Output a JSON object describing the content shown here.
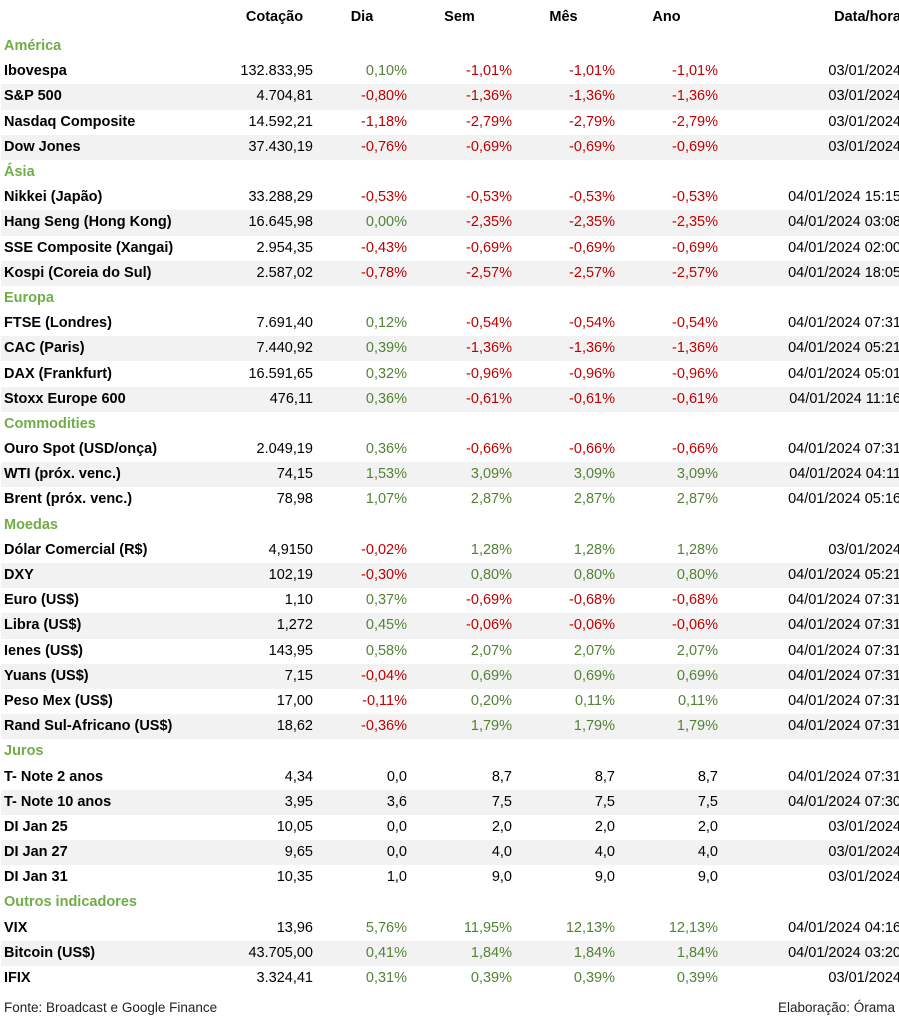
{
  "headers": {
    "cotacao": "Cotação",
    "dia": "Dia",
    "sem": "Sem",
    "mes": "Mês",
    "ano": "Ano",
    "datahora": "Data/hora"
  },
  "sections": [
    {
      "title": "América",
      "rows": [
        [
          "Ibovespa",
          "132.833,95",
          "0,10%",
          "-1,01%",
          "-1,01%",
          "-1,01%",
          "03/01/2024"
        ],
        [
          "S&P 500",
          "4.704,81",
          "-0,80%",
          "-1,36%",
          "-1,36%",
          "-1,36%",
          "03/01/2024"
        ],
        [
          "Nasdaq Composite",
          "14.592,21",
          "-1,18%",
          "-2,79%",
          "-2,79%",
          "-2,79%",
          "03/01/2024"
        ],
        [
          "Dow Jones",
          "37.430,19",
          "-0,76%",
          "-0,69%",
          "-0,69%",
          "-0,69%",
          "03/01/2024"
        ]
      ]
    },
    {
      "title": "Ásia",
      "rows": [
        [
          "Nikkei (Japão)",
          "33.288,29",
          "-0,53%",
          "-0,53%",
          "-0,53%",
          "-0,53%",
          "04/01/2024 15:15"
        ],
        [
          "Hang Seng (Hong Kong)",
          "16.645,98",
          "0,00%",
          "-2,35%",
          "-2,35%",
          "-2,35%",
          "04/01/2024 03:08"
        ],
        [
          "SSE Composite (Xangai)",
          "2.954,35",
          "-0,43%",
          "-0,69%",
          "-0,69%",
          "-0,69%",
          "04/01/2024 02:00"
        ],
        [
          "Kospi (Coreia do Sul)",
          "2.587,02",
          "-0,78%",
          "-2,57%",
          "-2,57%",
          "-2,57%",
          "04/01/2024 18:05"
        ]
      ]
    },
    {
      "title": "Europa",
      "rows": [
        [
          "FTSE (Londres)",
          "7.691,40",
          "0,12%",
          "-0,54%",
          "-0,54%",
          "-0,54%",
          "04/01/2024 07:31"
        ],
        [
          "CAC (Paris)",
          "7.440,92",
          "0,39%",
          "-1,36%",
          "-1,36%",
          "-1,36%",
          "04/01/2024 05:21"
        ],
        [
          "DAX (Frankfurt)",
          "16.591,65",
          "0,32%",
          "-0,96%",
          "-0,96%",
          "-0,96%",
          "04/01/2024 05:01"
        ],
        [
          "Stoxx Europe 600",
          "476,11",
          "0,36%",
          "-0,61%",
          "-0,61%",
          "-0,61%",
          "04/01/2024 11:16"
        ]
      ]
    },
    {
      "title": "Commodities",
      "rows": [
        [
          "Ouro Spot (USD/onça)",
          "2.049,19",
          "0,36%",
          "-0,66%",
          "-0,66%",
          "-0,66%",
          "04/01/2024 07:31"
        ],
        [
          "WTI (próx. venc.)",
          "74,15",
          "1,53%",
          "3,09%",
          "3,09%",
          "3,09%",
          "04/01/2024 04:11"
        ],
        [
          "Brent (próx. venc.)",
          "78,98",
          "1,07%",
          "2,87%",
          "2,87%",
          "2,87%",
          "04/01/2024 05:16"
        ]
      ]
    },
    {
      "title": "Moedas",
      "rows": [
        [
          "Dólar Comercial (R$)",
          "4,9150",
          "-0,02%",
          "1,28%",
          "1,28%",
          "1,28%",
          "03/01/2024"
        ],
        [
          "DXY",
          "102,19",
          "-0,30%",
          "0,80%",
          "0,80%",
          "0,80%",
          "04/01/2024 05:21"
        ],
        [
          "Euro (US$)",
          "1,10",
          "0,37%",
          "-0,69%",
          "-0,68%",
          "-0,68%",
          "04/01/2024 07:31"
        ],
        [
          "Libra (US$)",
          "1,272",
          "0,45%",
          "-0,06%",
          "-0,06%",
          "-0,06%",
          "04/01/2024 07:31"
        ],
        [
          "Ienes (US$)",
          "143,95",
          "0,58%",
          "2,07%",
          "2,07%",
          "2,07%",
          "04/01/2024 07:31"
        ],
        [
          "Yuans (US$)",
          "7,15",
          "-0,04%",
          "0,69%",
          "0,69%",
          "0,69%",
          "04/01/2024 07:31"
        ],
        [
          "Peso Mex (US$)",
          "17,00",
          "-0,11%",
          "0,20%",
          "0,11%",
          "0,11%",
          "04/01/2024 07:31"
        ],
        [
          "Rand Sul-Africano (US$)",
          "18,62",
          "-0,36%",
          "1,79%",
          "1,79%",
          "1,79%",
          "04/01/2024 07:31"
        ]
      ]
    },
    {
      "title": "Juros",
      "rows": [
        [
          "T- Note 2 anos",
          "4,34",
          "0,0",
          "8,7",
          "8,7",
          "8,7",
          "04/01/2024 07:31"
        ],
        [
          "T- Note 10 anos",
          "3,95",
          "3,6",
          "7,5",
          "7,5",
          "7,5",
          "04/01/2024 07:30"
        ],
        [
          "DI Jan 25",
          "10,05",
          "0,0",
          "2,0",
          "2,0",
          "2,0",
          "03/01/2024"
        ],
        [
          "DI Jan 27",
          "9,65",
          "0,0",
          "4,0",
          "4,0",
          "4,0",
          "03/01/2024"
        ],
        [
          "DI Jan 31",
          "10,35",
          "1,0",
          "9,0",
          "9,0",
          "9,0",
          "03/01/2024"
        ]
      ]
    },
    {
      "title": "Outros indicadores",
      "rows": [
        [
          "VIX",
          "13,96",
          "5,76%",
          "11,95%",
          "12,13%",
          "12,13%",
          "04/01/2024 04:16"
        ],
        [
          "Bitcoin (US$)",
          "43.705,00",
          "0,41%",
          "1,84%",
          "1,84%",
          "1,84%",
          "04/01/2024 03:20"
        ],
        [
          "IFIX",
          "3.324,41",
          "0,31%",
          "0,39%",
          "0,39%",
          "0,39%",
          "03/01/2024"
        ]
      ]
    }
  ],
  "footer": {
    "source": "Fonte: Broadcast e Google Finance",
    "credit": "Elaboração: Órama"
  },
  "colors": {
    "positive": "#548235",
    "negative": "#c00000",
    "section": "#70ad47",
    "stripe": "#f2f2f2"
  }
}
